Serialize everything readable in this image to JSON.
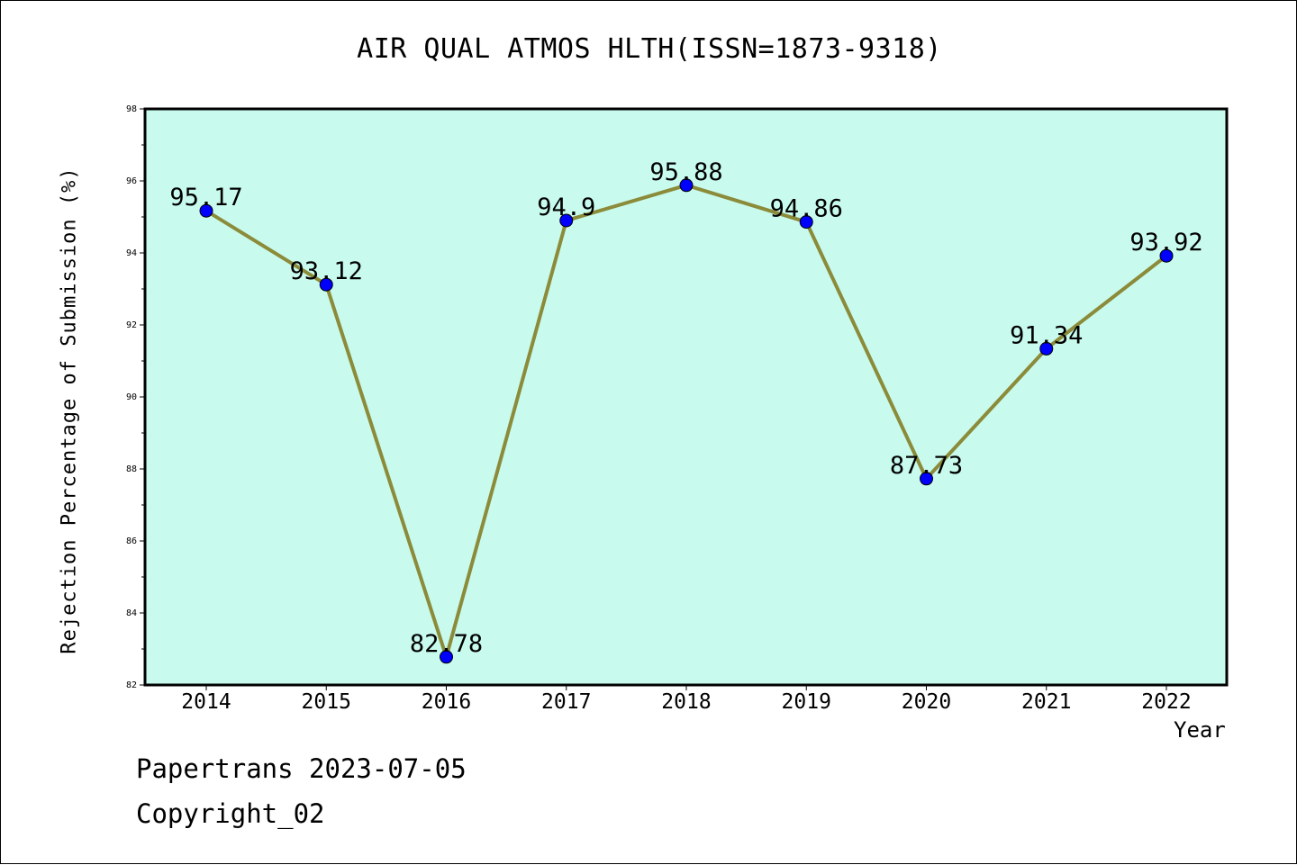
{
  "chart_data": {
    "type": "line",
    "title": "AIR QUAL ATMOS HLTH(ISSN=1873-9318)",
    "xlabel": "Year",
    "ylabel": "Rejection Percentage of Submission (%)",
    "categories": [
      "2014",
      "2015",
      "2016",
      "2017",
      "2018",
      "2019",
      "2020",
      "2021",
      "2022"
    ],
    "series": [
      {
        "values": [
          95.17,
          93.12,
          82.78,
          94.9,
          95.88,
          94.86,
          87.73,
          91.34,
          93.92
        ],
        "data_labels": [
          "95.17",
          "93.12",
          "82.78",
          "94.9",
          "95.88",
          "94.86",
          "87.73",
          "91.34",
          "93.92"
        ]
      }
    ],
    "ylim": [
      82,
      98
    ],
    "yticks": [
      82,
      84,
      86,
      88,
      90,
      92,
      94,
      96,
      98
    ],
    "grid": false,
    "legend": "none",
    "colors": {
      "plot_background": "#c8fbee",
      "line": "#8b8b3a",
      "marker": "#0000ff"
    }
  },
  "footer": {
    "line1": "Papertrans 2023-07-05",
    "line2": "Copyright_02"
  }
}
